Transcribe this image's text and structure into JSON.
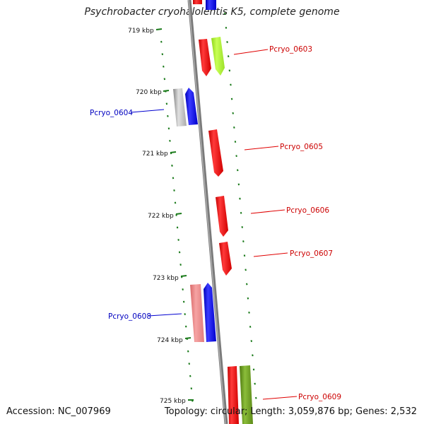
{
  "title": "Psychrobacter cryohalolentis K5, complete genome",
  "accession": "Accession: NC_007969",
  "summary": "Topology: circular; Length: 3,059,876 bp; Genes: 2,532",
  "colors": {
    "forward": "#ff0000",
    "reverse": "#0000ff",
    "backbone": "#888888",
    "ruler": "#1a7a1a"
  },
  "ticks": [
    "719 kbp",
    "720 kbp",
    "721 kbp",
    "722 kbp",
    "723 kbp",
    "724 kbp",
    "725 kbp"
  ],
  "genes": [
    {
      "name": "Pcryo_0603",
      "strand": "forward"
    },
    {
      "name": "Pcryo_0604",
      "strand": "reverse"
    },
    {
      "name": "Pcryo_0605",
      "strand": "forward"
    },
    {
      "name": "Pcryo_0606",
      "strand": "forward"
    },
    {
      "name": "Pcryo_0607",
      "strand": "forward"
    },
    {
      "name": "Pcryo_0608",
      "strand": "reverse"
    },
    {
      "name": "Pcryo_0609",
      "strand": "forward"
    }
  ]
}
